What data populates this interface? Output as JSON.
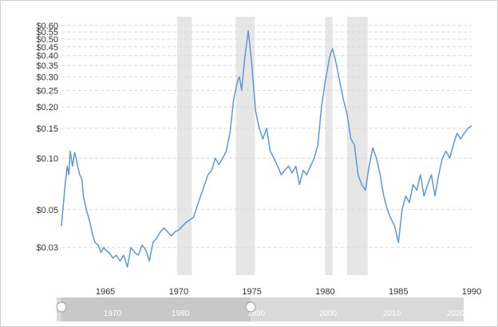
{
  "chart_data": {
    "type": "line",
    "y_scale": "log",
    "ylim": [
      0.022,
      0.62
    ],
    "xlim": [
      1962.0,
      1990.0
    ],
    "y_ticks": [
      {
        "value": 0.6,
        "label": "$0.60"
      },
      {
        "value": 0.55,
        "label": "$0.55"
      },
      {
        "value": 0.5,
        "label": "$0.50"
      },
      {
        "value": 0.45,
        "label": "$0.45"
      },
      {
        "value": 0.4,
        "label": "$0.40"
      },
      {
        "value": 0.35,
        "label": "$0.35"
      },
      {
        "value": 0.3,
        "label": "$0.30"
      },
      {
        "value": 0.25,
        "label": "$0.25"
      },
      {
        "value": 0.2,
        "label": "$0.20"
      },
      {
        "value": 0.15,
        "label": "$0.15"
      },
      {
        "value": 0.1,
        "label": "$0.10"
      },
      {
        "value": 0.05,
        "label": "$0.05"
      },
      {
        "value": 0.03,
        "label": "$0.03"
      }
    ],
    "x_ticks": [
      {
        "value": 1965,
        "label": "1965"
      },
      {
        "value": 1970,
        "label": "1970"
      },
      {
        "value": 1975,
        "label": "1975"
      },
      {
        "value": 1980,
        "label": "1980"
      },
      {
        "value": 1985,
        "label": "1985"
      },
      {
        "value": 1990,
        "label": "1990"
      }
    ],
    "grid": "horizontal dashed",
    "line_color": "#5b9bd5",
    "recession_color": "#e6e6e6",
    "recessions": [
      [
        1969.9,
        1970.9
      ],
      [
        1973.9,
        1975.2
      ],
      [
        1980.0,
        1980.5
      ],
      [
        1981.5,
        1982.9
      ]
    ],
    "series": [
      {
        "x": [
          1962.0,
          1962.1,
          1962.25,
          1962.4,
          1962.5,
          1962.6,
          1962.75,
          1962.9,
          1963.0,
          1963.1,
          1963.25,
          1963.4,
          1963.5,
          1963.7,
          1963.85,
          1964.0,
          1964.15,
          1964.3,
          1964.5,
          1964.7,
          1964.9,
          1965.0,
          1965.25,
          1965.5,
          1965.75,
          1966.0,
          1966.25,
          1966.5,
          1966.75,
          1967.0,
          1967.25,
          1967.5,
          1967.75,
          1968.0,
          1968.25,
          1968.5,
          1968.75,
          1969.0,
          1969.25,
          1969.5,
          1969.75,
          1970.0,
          1970.5,
          1971.0,
          1971.5,
          1972.0,
          1972.25,
          1972.5,
          1972.75,
          1973.0,
          1973.25,
          1973.5,
          1973.75,
          1974.0,
          1974.15,
          1974.3,
          1974.5,
          1974.75,
          1975.0,
          1975.25,
          1975.5,
          1975.75,
          1976.0,
          1976.25,
          1976.5,
          1976.75,
          1977.0,
          1977.25,
          1977.5,
          1977.75,
          1978.0,
          1978.25,
          1978.5,
          1978.75,
          1979.0,
          1979.25,
          1979.5,
          1979.75,
          1980.0,
          1980.15,
          1980.3,
          1980.5,
          1980.75,
          1981.0,
          1981.25,
          1981.5,
          1981.75,
          1982.0,
          1982.25,
          1982.5,
          1982.75,
          1983.0,
          1983.25,
          1983.5,
          1983.75,
          1984.0,
          1984.25,
          1984.5,
          1984.75,
          1985.0,
          1985.25,
          1985.5,
          1985.75,
          1986.0,
          1986.25,
          1986.5,
          1986.75,
          1987.0,
          1987.25,
          1987.5,
          1987.75,
          1988.0,
          1988.25,
          1988.5,
          1988.75,
          1989.0,
          1989.25,
          1989.5,
          1989.75,
          1990.0
        ],
        "values": [
          0.04,
          0.05,
          0.07,
          0.09,
          0.08,
          0.11,
          0.09,
          0.108,
          0.1,
          0.09,
          0.08,
          0.075,
          0.06,
          0.05,
          0.045,
          0.04,
          0.035,
          0.032,
          0.031,
          0.028,
          0.03,
          0.029,
          0.028,
          0.026,
          0.027,
          0.025,
          0.027,
          0.023,
          0.03,
          0.028,
          0.027,
          0.031,
          0.029,
          0.025,
          0.032,
          0.034,
          0.037,
          0.039,
          0.037,
          0.035,
          0.037,
          0.038,
          0.042,
          0.045,
          0.06,
          0.08,
          0.085,
          0.1,
          0.092,
          0.1,
          0.11,
          0.14,
          0.22,
          0.28,
          0.3,
          0.25,
          0.38,
          0.56,
          0.35,
          0.19,
          0.15,
          0.13,
          0.15,
          0.11,
          0.1,
          0.09,
          0.08,
          0.085,
          0.09,
          0.082,
          0.09,
          0.07,
          0.085,
          0.08,
          0.09,
          0.1,
          0.12,
          0.2,
          0.28,
          0.33,
          0.39,
          0.44,
          0.36,
          0.28,
          0.22,
          0.18,
          0.13,
          0.12,
          0.08,
          0.07,
          0.065,
          0.09,
          0.115,
          0.1,
          0.08,
          0.06,
          0.05,
          0.044,
          0.04,
          0.032,
          0.05,
          0.06,
          0.055,
          0.07,
          0.065,
          0.08,
          0.06,
          0.07,
          0.08,
          0.06,
          0.08,
          0.1,
          0.11,
          0.1,
          0.12,
          0.14,
          0.13,
          0.14,
          0.15,
          0.155
        ]
      }
    ]
  },
  "navigator": {
    "labels": [
      "1970",
      "1980",
      "1990",
      "2000",
      "2010",
      "2020"
    ]
  }
}
